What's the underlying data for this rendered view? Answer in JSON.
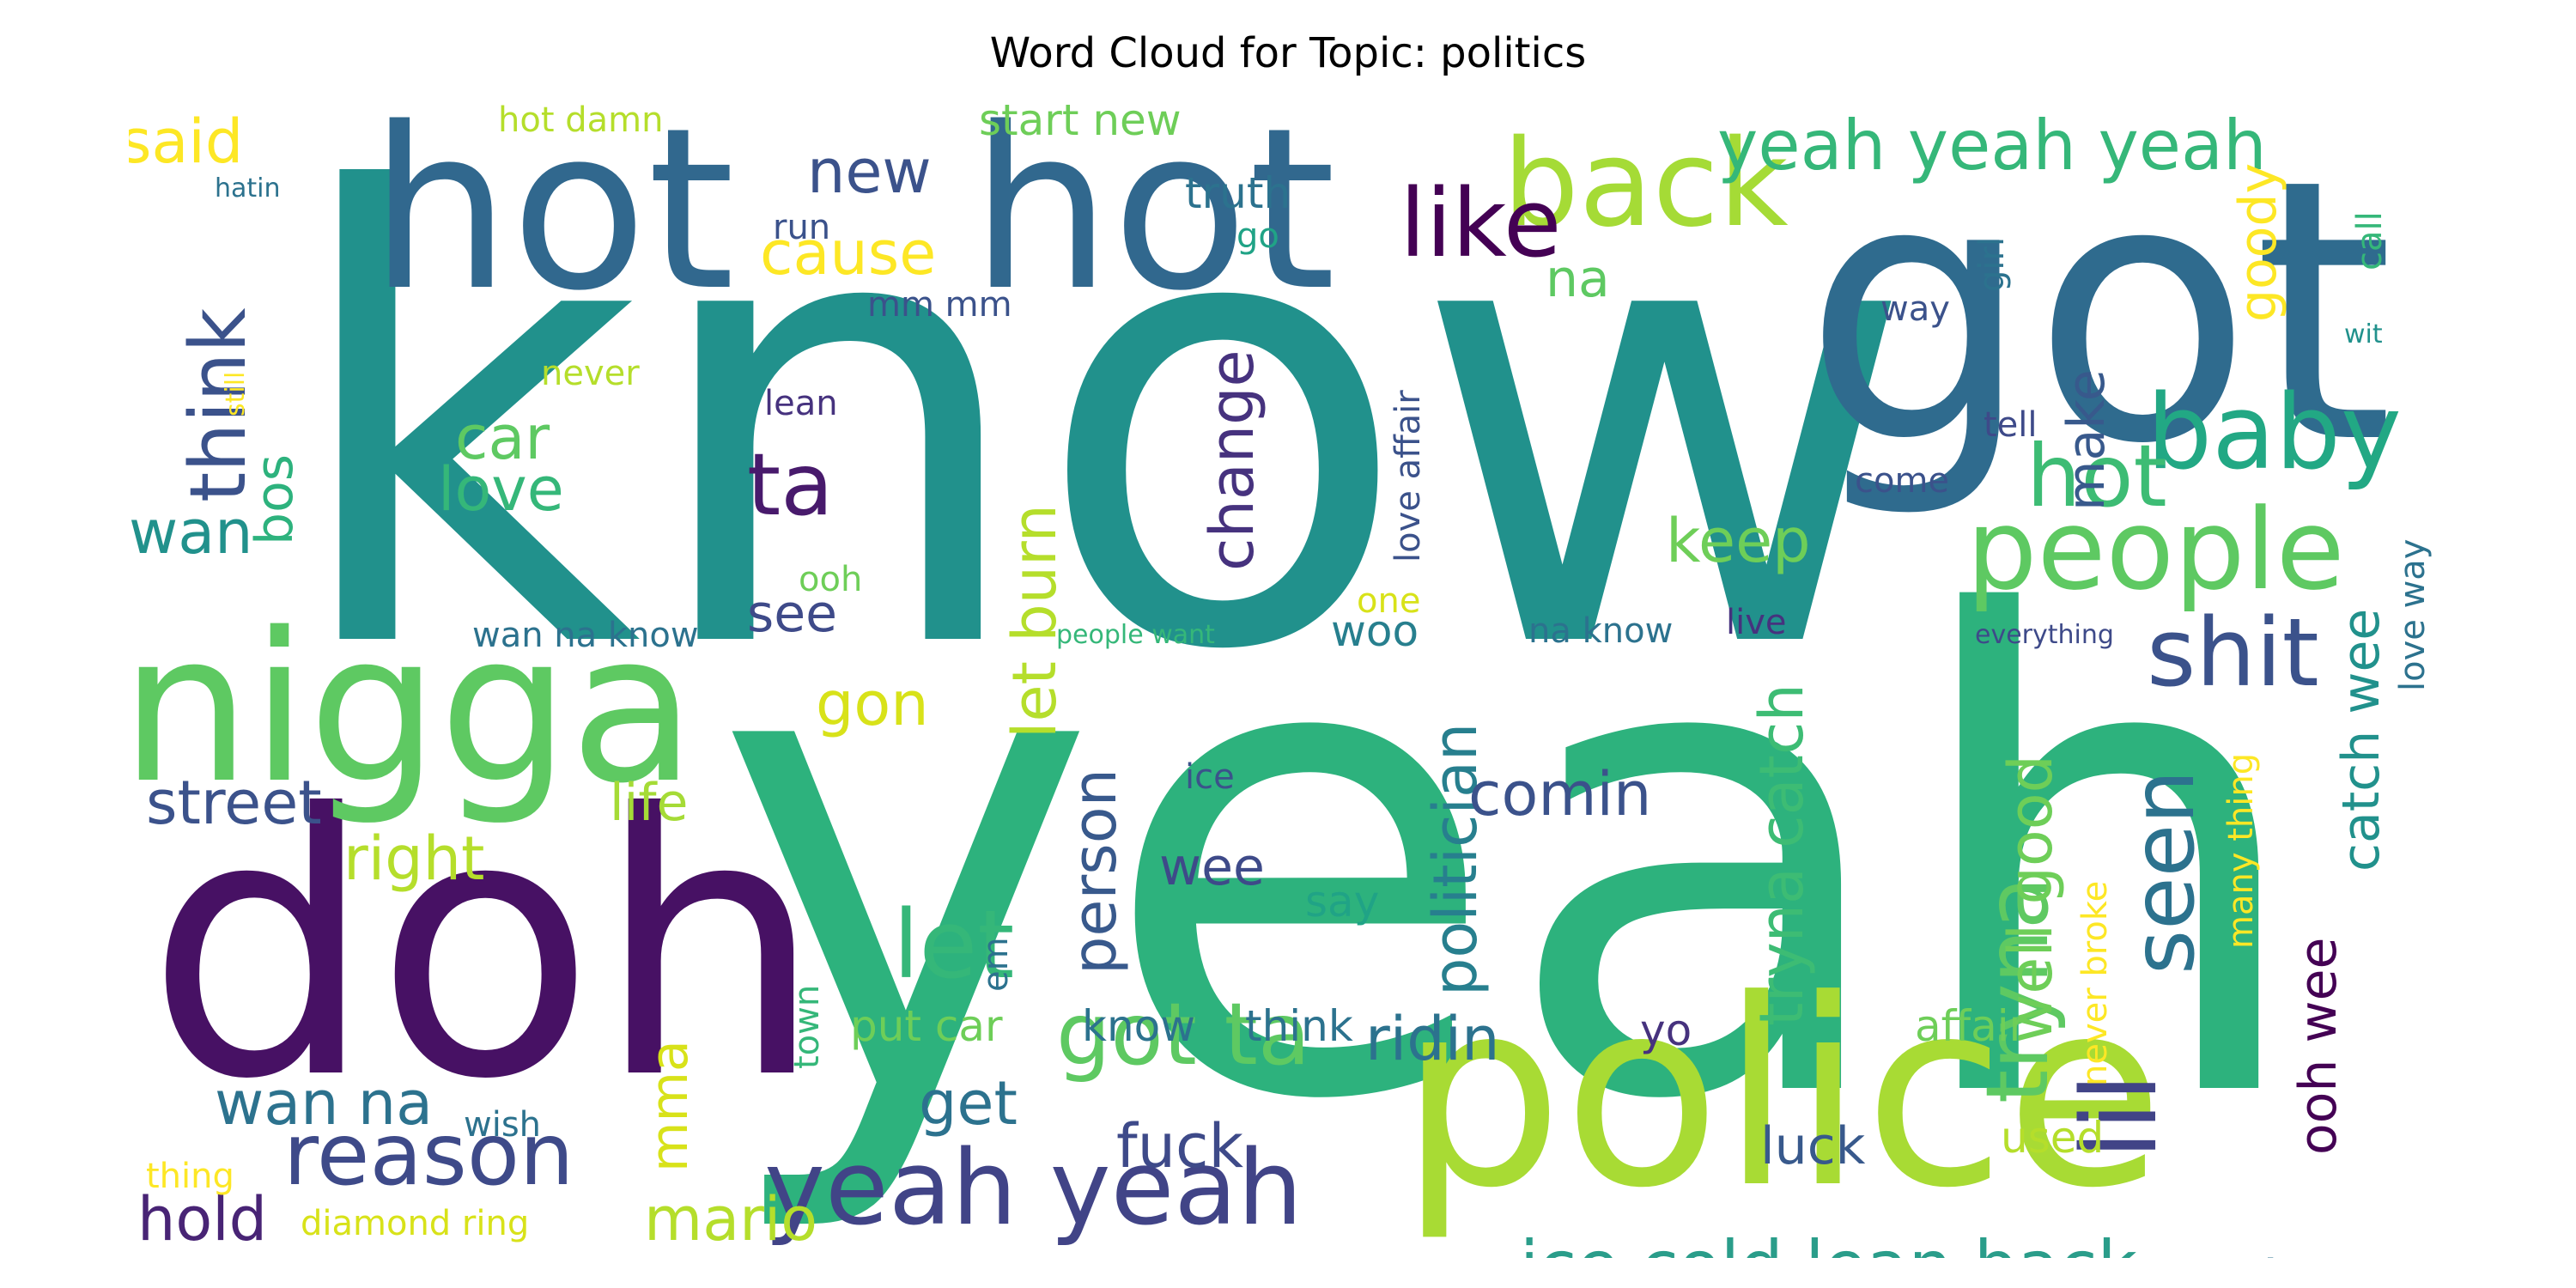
{
  "title": "Word Cloud for Topic: politics",
  "colormap": "viridis",
  "words": [
    {
      "text": "know",
      "color": "#21918c",
      "rotated": false
    },
    {
      "text": "yeah",
      "color": "#2db27d",
      "rotated": false
    },
    {
      "text": "got",
      "color": "#2f6b8e",
      "rotated": false
    },
    {
      "text": "doh",
      "color": "#471164",
      "rotated": false
    },
    {
      "text": "police",
      "color": "#a8db34",
      "rotated": false
    },
    {
      "text": "hot",
      "color": "#31688e",
      "rotated": false
    },
    {
      "text": "hot",
      "color": "#31688e",
      "rotated": false
    },
    {
      "text": "nigga",
      "color": "#5ec962",
      "rotated": false
    },
    {
      "text": "back",
      "color": "#a5db36",
      "rotated": false
    },
    {
      "text": "yeah yeah yeah",
      "color": "#35b779",
      "rotated": false
    },
    {
      "text": "people",
      "color": "#5ec962",
      "rotated": false
    },
    {
      "text": "baby",
      "color": "#22a884",
      "rotated": false
    },
    {
      "text": "like",
      "color": "#440154",
      "rotated": false
    },
    {
      "text": "shit",
      "color": "#3b528b",
      "rotated": false
    },
    {
      "text": "yeah yeah",
      "color": "#414487",
      "rotated": false
    },
    {
      "text": "reason",
      "color": "#3e4a89",
      "rotated": false
    },
    {
      "text": "got ta",
      "color": "#5ec962",
      "rotated": false
    },
    {
      "text": "ice cold lean back",
      "color": "#2a9d8a",
      "rotated": false
    },
    {
      "text": "hot",
      "color": "#3dbc74",
      "rotated": false
    },
    {
      "text": "let",
      "color": "#35b779",
      "rotated": false
    },
    {
      "text": "ta",
      "color": "#481a6c",
      "rotated": false
    },
    {
      "text": "tryna",
      "color": "#5ec962",
      "rotated": true
    },
    {
      "text": "lil",
      "color": "#414487",
      "rotated": true
    },
    {
      "text": "seen",
      "color": "#2c728e",
      "rotated": true
    },
    {
      "text": "change",
      "color": "#46327e",
      "rotated": true
    },
    {
      "text": "politician",
      "color": "#277f8e",
      "rotated": true
    },
    {
      "text": "tryna catch",
      "color": "#3dbc74",
      "rotated": true
    },
    {
      "text": "think",
      "color": "#3b528b",
      "rotated": true
    },
    {
      "text": "let burn",
      "color": "#b5de2b",
      "rotated": true
    },
    {
      "text": "person",
      "color": "#38598c",
      "rotated": true
    },
    {
      "text": "well good",
      "color": "#6ece58",
      "rotated": true
    },
    {
      "text": "comin",
      "color": "#3b528b",
      "rotated": false
    },
    {
      "text": "ridin",
      "color": "#2c728e",
      "rotated": false
    },
    {
      "text": "street",
      "color": "#3b528b",
      "rotated": false
    },
    {
      "text": "right",
      "color": "#b5de2b",
      "rotated": false
    },
    {
      "text": "keep",
      "color": "#6ece58",
      "rotated": false
    },
    {
      "text": "want",
      "color": "#2c728e",
      "rotated": false
    },
    {
      "text": "new",
      "color": "#3b528b",
      "rotated": false
    },
    {
      "text": "cause",
      "color": "#fde725",
      "rotated": false
    },
    {
      "text": "start new",
      "color": "#6ece58",
      "rotated": false
    },
    {
      "text": "said",
      "color": "#fde725",
      "rotated": false
    },
    {
      "text": "na",
      "color": "#5ec962",
      "rotated": false
    },
    {
      "text": "love",
      "color": "#35b779",
      "rotated": false
    },
    {
      "text": "car",
      "color": "#5ec962",
      "rotated": false
    },
    {
      "text": "wan",
      "color": "#21918c",
      "rotated": false
    },
    {
      "text": "bos",
      "color": "#2db27d",
      "rotated": true
    },
    {
      "text": "gon",
      "color": "#d8e219",
      "rotated": false
    },
    {
      "text": "see",
      "color": "#3e4a89",
      "rotated": false
    },
    {
      "text": "life",
      "color": "#a5db36",
      "rotated": false
    },
    {
      "text": "wee",
      "color": "#3e4a89",
      "rotated": false
    },
    {
      "text": "get",
      "color": "#2c728e",
      "rotated": false
    },
    {
      "text": "fuck",
      "color": "#3e4a89",
      "rotated": false
    },
    {
      "text": "wan na",
      "color": "#2c728e",
      "rotated": false
    },
    {
      "text": "hold",
      "color": "#482475",
      "rotated": false
    },
    {
      "text": "mario",
      "color": "#b5de2b",
      "rotated": false
    },
    {
      "text": "mma",
      "color": "#d8e219",
      "rotated": true
    },
    {
      "text": "woo",
      "color": "#277f8e",
      "rotated": false
    },
    {
      "text": "make",
      "color": "#38598c",
      "rotated": true
    },
    {
      "text": "goody",
      "color": "#fde725",
      "rotated": true
    },
    {
      "text": "ooh wee",
      "color": "#440154",
      "rotated": true
    },
    {
      "text": "catch wee",
      "color": "#21918c",
      "rotated": true
    },
    {
      "text": "luck",
      "color": "#38598c",
      "rotated": false
    },
    {
      "text": "say",
      "color": "#20a386",
      "rotated": false
    },
    {
      "text": "put car",
      "color": "#6ece58",
      "rotated": false
    },
    {
      "text": "know",
      "color": "#2c728e",
      "rotated": false
    },
    {
      "text": "think",
      "color": "#2c728e",
      "rotated": false
    },
    {
      "text": "yo",
      "color": "#46327e",
      "rotated": false
    },
    {
      "text": "affair",
      "color": "#6ece58",
      "rotated": false
    },
    {
      "text": "used",
      "color": "#b5de2b",
      "rotated": false
    },
    {
      "text": "never broke",
      "color": "#fde725",
      "rotated": true
    },
    {
      "text": "many thing",
      "color": "#fde725",
      "rotated": true
    },
    {
      "text": "love way",
      "color": "#2c728e",
      "rotated": true
    },
    {
      "text": "love affair",
      "color": "#3b528b",
      "rotated": true
    },
    {
      "text": "girl",
      "color": "#2c728e",
      "rotated": true
    },
    {
      "text": "call",
      "color": "#35b779",
      "rotated": true
    },
    {
      "text": "wit",
      "color": "#21918c",
      "rotated": false
    },
    {
      "text": "way",
      "color": "#3b528b",
      "rotated": false
    },
    {
      "text": "truth",
      "color": "#2c728e",
      "rotated": false
    },
    {
      "text": "go",
      "color": "#20a386",
      "rotated": false
    },
    {
      "text": "mm mm",
      "color": "#3b528b",
      "rotated": false
    },
    {
      "text": "run",
      "color": "#3b528b",
      "rotated": false
    },
    {
      "text": "hot damn",
      "color": "#b5de2b",
      "rotated": false
    },
    {
      "text": "hatin",
      "color": "#2c728e",
      "rotated": false
    },
    {
      "text": "still",
      "color": "#fde725",
      "rotated": true
    },
    {
      "text": "never",
      "color": "#b5de2b",
      "rotated": false
    },
    {
      "text": "lean",
      "color": "#46327e",
      "rotated": false
    },
    {
      "text": "ooh",
      "color": "#6ece58",
      "rotated": false
    },
    {
      "text": "one",
      "color": "#d8e219",
      "rotated": false
    },
    {
      "text": "people want",
      "color": "#35b779",
      "rotated": false
    },
    {
      "text": "wan na know",
      "color": "#2c728e",
      "rotated": false
    },
    {
      "text": "na know",
      "color": "#2c728e",
      "rotated": false
    },
    {
      "text": "live",
      "color": "#46327e",
      "rotated": false
    },
    {
      "text": "everything",
      "color": "#3e4a89",
      "rotated": false
    },
    {
      "text": "ice",
      "color": "#3b528b",
      "rotated": false
    },
    {
      "text": "tell",
      "color": "#3e4a89",
      "rotated": false
    },
    {
      "text": "come",
      "color": "#3b528b",
      "rotated": false
    },
    {
      "text": "em",
      "color": "#2c728e",
      "rotated": true
    },
    {
      "text": "town",
      "color": "#35b779",
      "rotated": true
    },
    {
      "text": "wish",
      "color": "#2c728e",
      "rotated": false
    },
    {
      "text": "thing",
      "color": "#fde725",
      "rotated": false
    },
    {
      "text": "diamond ring",
      "color": "#d8e219",
      "rotated": false
    }
  ]
}
